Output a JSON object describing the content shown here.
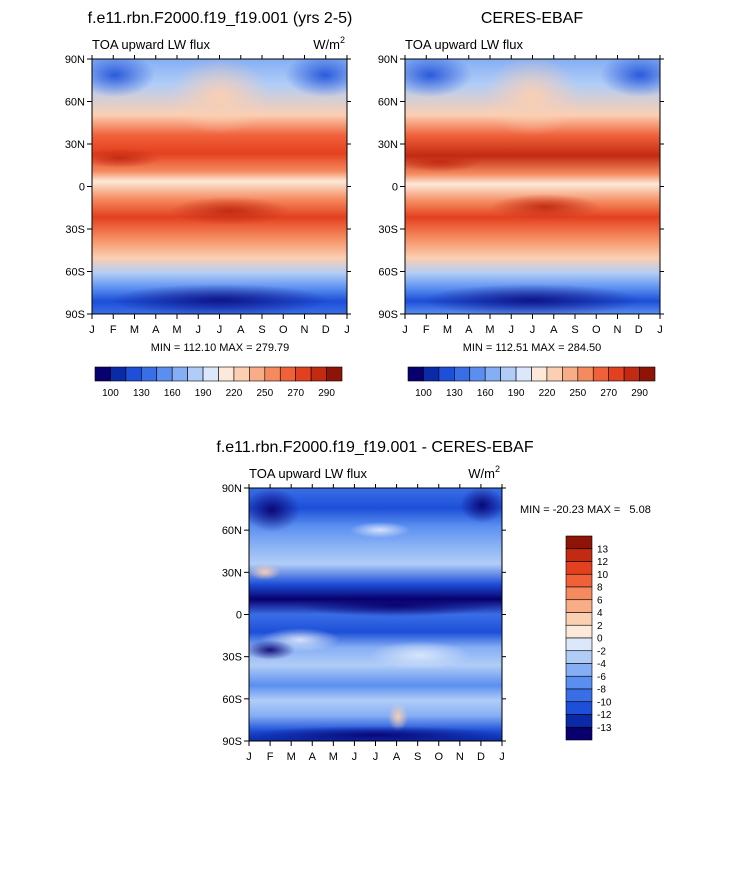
{
  "chart_data": [
    {
      "type": "heatmap",
      "panel": "model",
      "title": "f.e11.rbn.F2000.f19_f19.001 (yrs 2-5)",
      "subtitle_left": "TOA upward LW flux",
      "units_base": "W/m",
      "units_exp": "2",
      "x_ticks": [
        "J",
        "F",
        "M",
        "A",
        "M",
        "J",
        "J",
        "A",
        "S",
        "O",
        "N",
        "D",
        "J"
      ],
      "y_ticks": [
        "90N",
        "60N",
        "30N",
        "0",
        "30S",
        "60S",
        "90S"
      ],
      "y_range": [
        -90,
        90
      ],
      "stats": "MIN = 112.10 MAX = 279.79",
      "colorbar_labels": [
        "100",
        "130",
        "160",
        "190",
        "220",
        "250",
        "270",
        "290"
      ],
      "colorbar_colors": [
        "#08006e",
        "#0a2aa8",
        "#1d4fd8",
        "#3a6ee6",
        "#5a8ef0",
        "#85aef4",
        "#b1cdf7",
        "#dbe7fb",
        "#fde9d9",
        "#fbcfb2",
        "#f8ad88",
        "#f58a5e",
        "#f0613a",
        "#e3401f",
        "#c22a12",
        "#8e1408"
      ],
      "min": 112.1,
      "max": 279.79
    },
    {
      "type": "heatmap",
      "panel": "obs",
      "title": "CERES-EBAF",
      "subtitle_left": "TOA upward LW flux",
      "x_ticks": [
        "J",
        "F",
        "M",
        "A",
        "M",
        "J",
        "J",
        "A",
        "S",
        "O",
        "N",
        "D",
        "J"
      ],
      "y_ticks": [
        "90N",
        "60N",
        "30N",
        "0",
        "30S",
        "60S",
        "90S"
      ],
      "y_range": [
        -90,
        90
      ],
      "stats": "MIN = 112.51 MAX = 284.50",
      "colorbar_labels": [
        "100",
        "130",
        "160",
        "190",
        "220",
        "250",
        "270",
        "290"
      ],
      "colorbar_colors": [
        "#08006e",
        "#0a2aa8",
        "#1d4fd8",
        "#3a6ee6",
        "#5a8ef0",
        "#85aef4",
        "#b1cdf7",
        "#dbe7fb",
        "#fde9d9",
        "#fbcfb2",
        "#f8ad88",
        "#f58a5e",
        "#f0613a",
        "#e3401f",
        "#c22a12",
        "#8e1408"
      ],
      "min": 112.51,
      "max": 284.5
    },
    {
      "type": "heatmap",
      "panel": "difference",
      "title": "f.e11.rbn.F2000.f19_f19.001 - CERES-EBAF",
      "subtitle_left": "TOA upward LW flux",
      "units_base": "W/m",
      "units_exp": "2",
      "x_ticks": [
        "J",
        "F",
        "M",
        "A",
        "M",
        "J",
        "J",
        "A",
        "S",
        "O",
        "N",
        "D",
        "J"
      ],
      "y_ticks": [
        "90N",
        "60N",
        "30N",
        "0",
        "30S",
        "60S",
        "90S"
      ],
      "y_range": [
        -90,
        90
      ],
      "stats": "MIN = -20.23 MAX =   5.08",
      "colorbar_labels": [
        "13",
        "12",
        "10",
        "8",
        "6",
        "4",
        "2",
        "0",
        "-2",
        "-4",
        "-6",
        "-8",
        "-10",
        "-12",
        "-13"
      ],
      "colorbar_colors": [
        "#8e1408",
        "#c22a12",
        "#e3401f",
        "#f0613a",
        "#f58a5e",
        "#f8ad88",
        "#fbcfb2",
        "#fde9d9",
        "#dbe7fb",
        "#b1cdf7",
        "#85aef4",
        "#5a8ef0",
        "#3a6ee6",
        "#1d4fd8",
        "#0a2aa8",
        "#08006e"
      ],
      "min": -20.23,
      "max": 5.08
    }
  ]
}
